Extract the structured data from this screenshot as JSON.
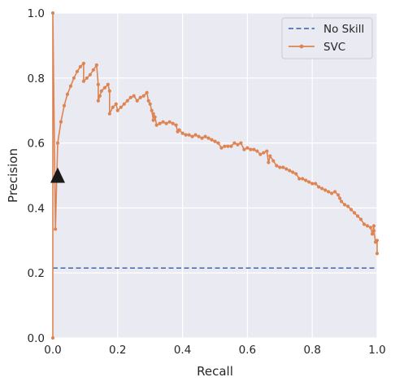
{
  "chart_data": {
    "type": "line",
    "xlabel": "Recall",
    "ylabel": "Precision",
    "xlim": [
      0.0,
      1.0
    ],
    "ylim": [
      0.0,
      1.0
    ],
    "xticks": [
      "0.0",
      "0.2",
      "0.4",
      "0.6",
      "0.8",
      "1.0"
    ],
    "yticks": [
      "0.0",
      "0.2",
      "0.4",
      "0.6",
      "0.8",
      "1.0"
    ],
    "grid": true,
    "legend_position": "top-right",
    "series": [
      {
        "name": "No Skill",
        "style": "dashed",
        "color": "#4c72b0",
        "x": [
          0.0,
          1.0
        ],
        "y": [
          0.215,
          0.215
        ]
      },
      {
        "name": "SVC",
        "style": "line-with-markers",
        "color": "#dd8452",
        "x": [
          0.0,
          0.0,
          0.008,
          0.015,
          0.025,
          0.035,
          0.045,
          0.055,
          0.065,
          0.075,
          0.085,
          0.095,
          0.095,
          0.105,
          0.115,
          0.125,
          0.135,
          0.14,
          0.14,
          0.145,
          0.15,
          0.16,
          0.17,
          0.175,
          0.175,
          0.185,
          0.195,
          0.2,
          0.21,
          0.22,
          0.23,
          0.24,
          0.25,
          0.26,
          0.27,
          0.28,
          0.29,
          0.295,
          0.3,
          0.305,
          0.31,
          0.31,
          0.315,
          0.32,
          0.33,
          0.34,
          0.35,
          0.36,
          0.37,
          0.38,
          0.385,
          0.39,
          0.4,
          0.41,
          0.42,
          0.43,
          0.44,
          0.45,
          0.46,
          0.47,
          0.48,
          0.49,
          0.5,
          0.51,
          0.52,
          0.53,
          0.54,
          0.55,
          0.56,
          0.57,
          0.58,
          0.59,
          0.6,
          0.61,
          0.62,
          0.63,
          0.64,
          0.65,
          0.66,
          0.665,
          0.67,
          0.68,
          0.69,
          0.7,
          0.71,
          0.72,
          0.73,
          0.74,
          0.75,
          0.76,
          0.77,
          0.78,
          0.79,
          0.8,
          0.81,
          0.82,
          0.83,
          0.84,
          0.85,
          0.86,
          0.87,
          0.88,
          0.885,
          0.89,
          0.9,
          0.91,
          0.92,
          0.93,
          0.94,
          0.95,
          0.96,
          0.97,
          0.98,
          0.985,
          0.99,
          0.99,
          0.995,
          1.0,
          1.0
        ],
        "y": [
          0.0,
          1.0,
          0.335,
          0.6,
          0.665,
          0.715,
          0.75,
          0.775,
          0.8,
          0.82,
          0.835,
          0.845,
          0.79,
          0.8,
          0.81,
          0.825,
          0.84,
          0.78,
          0.73,
          0.745,
          0.76,
          0.77,
          0.78,
          0.76,
          0.69,
          0.71,
          0.72,
          0.7,
          0.71,
          0.72,
          0.73,
          0.74,
          0.745,
          0.73,
          0.74,
          0.745,
          0.755,
          0.73,
          0.72,
          0.7,
          0.67,
          0.69,
          0.68,
          0.655,
          0.66,
          0.665,
          0.66,
          0.665,
          0.66,
          0.655,
          0.635,
          0.64,
          0.63,
          0.625,
          0.625,
          0.62,
          0.625,
          0.62,
          0.615,
          0.62,
          0.615,
          0.61,
          0.605,
          0.6,
          0.585,
          0.59,
          0.59,
          0.59,
          0.6,
          0.595,
          0.6,
          0.58,
          0.585,
          0.58,
          0.58,
          0.575,
          0.565,
          0.57,
          0.575,
          0.54,
          0.56,
          0.545,
          0.53,
          0.525,
          0.525,
          0.52,
          0.515,
          0.51,
          0.505,
          0.49,
          0.49,
          0.485,
          0.48,
          0.475,
          0.475,
          0.465,
          0.46,
          0.455,
          0.45,
          0.445,
          0.45,
          0.44,
          0.43,
          0.42,
          0.41,
          0.405,
          0.395,
          0.385,
          0.375,
          0.365,
          0.35,
          0.345,
          0.34,
          0.32,
          0.345,
          0.33,
          0.295,
          0.3,
          0.26
        ]
      }
    ],
    "annotations": [
      {
        "shape": "triangle",
        "color": "#1a1a1a",
        "x": 0.015,
        "y": 0.5
      }
    ]
  },
  "colors": {
    "plot_bg": "#eaeaf2",
    "grid": "#ffffff",
    "no_skill": "#4c72b0",
    "svc": "#dd8452",
    "marker": "#1a1a1a"
  }
}
